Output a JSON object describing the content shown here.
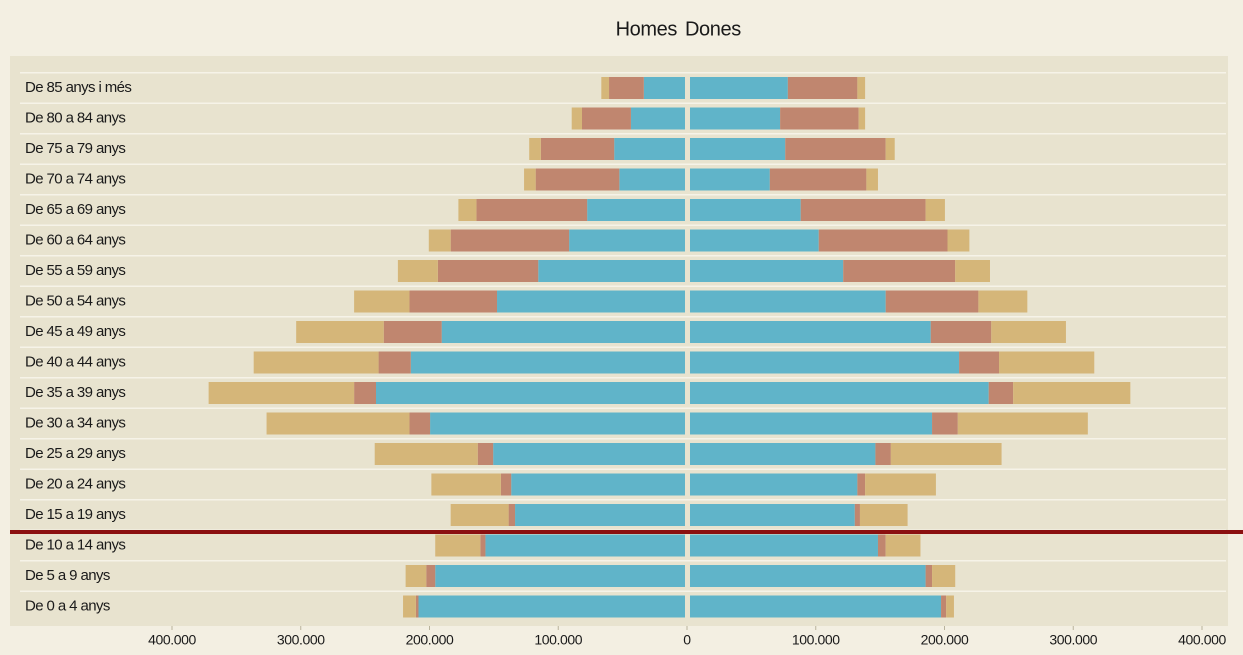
{
  "chart_data": {
    "type": "pyramid",
    "categories": [
      "De 85 anys i més",
      "De 80 a 84 anys",
      "De 75 a 79 anys",
      "De 70 a 74 anys",
      "De 65 a 69 anys",
      "De 60 a 64 anys",
      "De 55 a 59 anys",
      "De 50 a 54 anys",
      "De 45 a 49 anys",
      "De 40 a 44 anys",
      "De 35 a 39 anys",
      "De 30 a 34 anys",
      "De 25 a 29 anys",
      "De 20 a 24 anys",
      "De 15 a 19 anys",
      "De 10 a 14 anys",
      "De 5 a 9 anys",
      "De 0 a 4 anys"
    ],
    "sides": [
      {
        "name": "Homes",
        "series": [
          {
            "color": "#60b4c9",
            "values": [
              32000,
              42000,
              55000,
              51000,
              76000,
              90000,
              114000,
              146000,
              189000,
              213000,
              240000,
              198000,
              149000,
              135000,
              132000,
              155000,
              194000,
              207000
            ]
          },
          {
            "color": "#c0866f",
            "values": [
              27000,
              38000,
              57000,
              65000,
              86000,
              92000,
              78000,
              68000,
              45000,
              25000,
              17000,
              16000,
              12000,
              8000,
              5000,
              4000,
              7000,
              2000
            ]
          },
          {
            "color": "#d5b679",
            "values": [
              6000,
              8000,
              9000,
              9000,
              14000,
              17000,
              31000,
              43000,
              68000,
              97000,
              113000,
              111000,
              80000,
              54000,
              45000,
              35000,
              16000,
              10000
            ]
          }
        ]
      },
      {
        "name": "Dones",
        "series": [
          {
            "color": "#60b4c9",
            "values": [
              76000,
              70000,
              74000,
              62000,
              86000,
              100000,
              119000,
              152000,
              187000,
              209000,
              232000,
              188000,
              144000,
              130000,
              128000,
              146000,
              183000,
              195000
            ]
          },
          {
            "color": "#c0866f",
            "values": [
              54000,
              61000,
              78000,
              75000,
              97000,
              100000,
              87000,
              72000,
              47000,
              31000,
              19000,
              20000,
              12000,
              6000,
              4000,
              6000,
              5000,
              4000
            ]
          },
          {
            "color": "#d5b679",
            "values": [
              6000,
              5000,
              7000,
              9000,
              15000,
              17000,
              27000,
              38000,
              58000,
              74000,
              91000,
              101000,
              86000,
              55000,
              37000,
              27000,
              18000,
              6000
            ]
          }
        ]
      }
    ],
    "xlim": [
      -400000,
      400000
    ],
    "xticks": [
      {
        "value": -400000,
        "label": "400.000"
      },
      {
        "value": -300000,
        "label": "300.000"
      },
      {
        "value": -200000,
        "label": "200.000"
      },
      {
        "value": -100000,
        "label": "100.000"
      },
      0,
      {
        "value": 100000,
        "label": "100.000"
      },
      {
        "value": 200000,
        "label": "200.000"
      },
      {
        "value": 300000,
        "label": "300.000"
      },
      {
        "value": 400000,
        "label": "400.000"
      }
    ]
  }
}
